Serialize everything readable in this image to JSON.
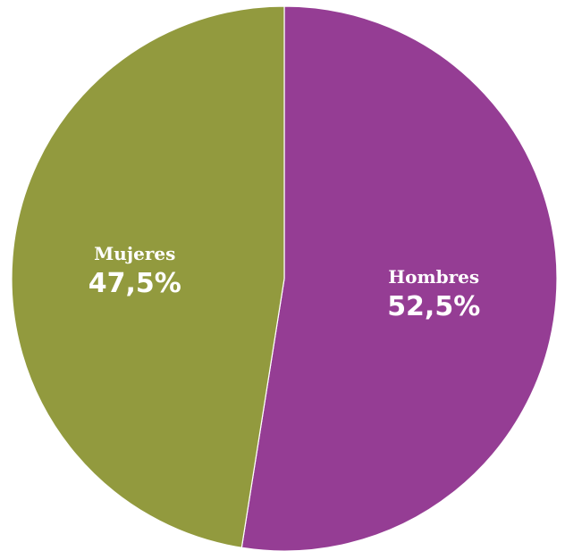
{
  "chart_data": {
    "type": "pie",
    "slices": [
      {
        "label": "Hombres",
        "value": 52.5,
        "value_label": "52,5%",
        "color": "#953d94"
      },
      {
        "label": "Mujeres",
        "value": 47.5,
        "value_label": "47,5%",
        "color": "#929a3e"
      }
    ]
  }
}
